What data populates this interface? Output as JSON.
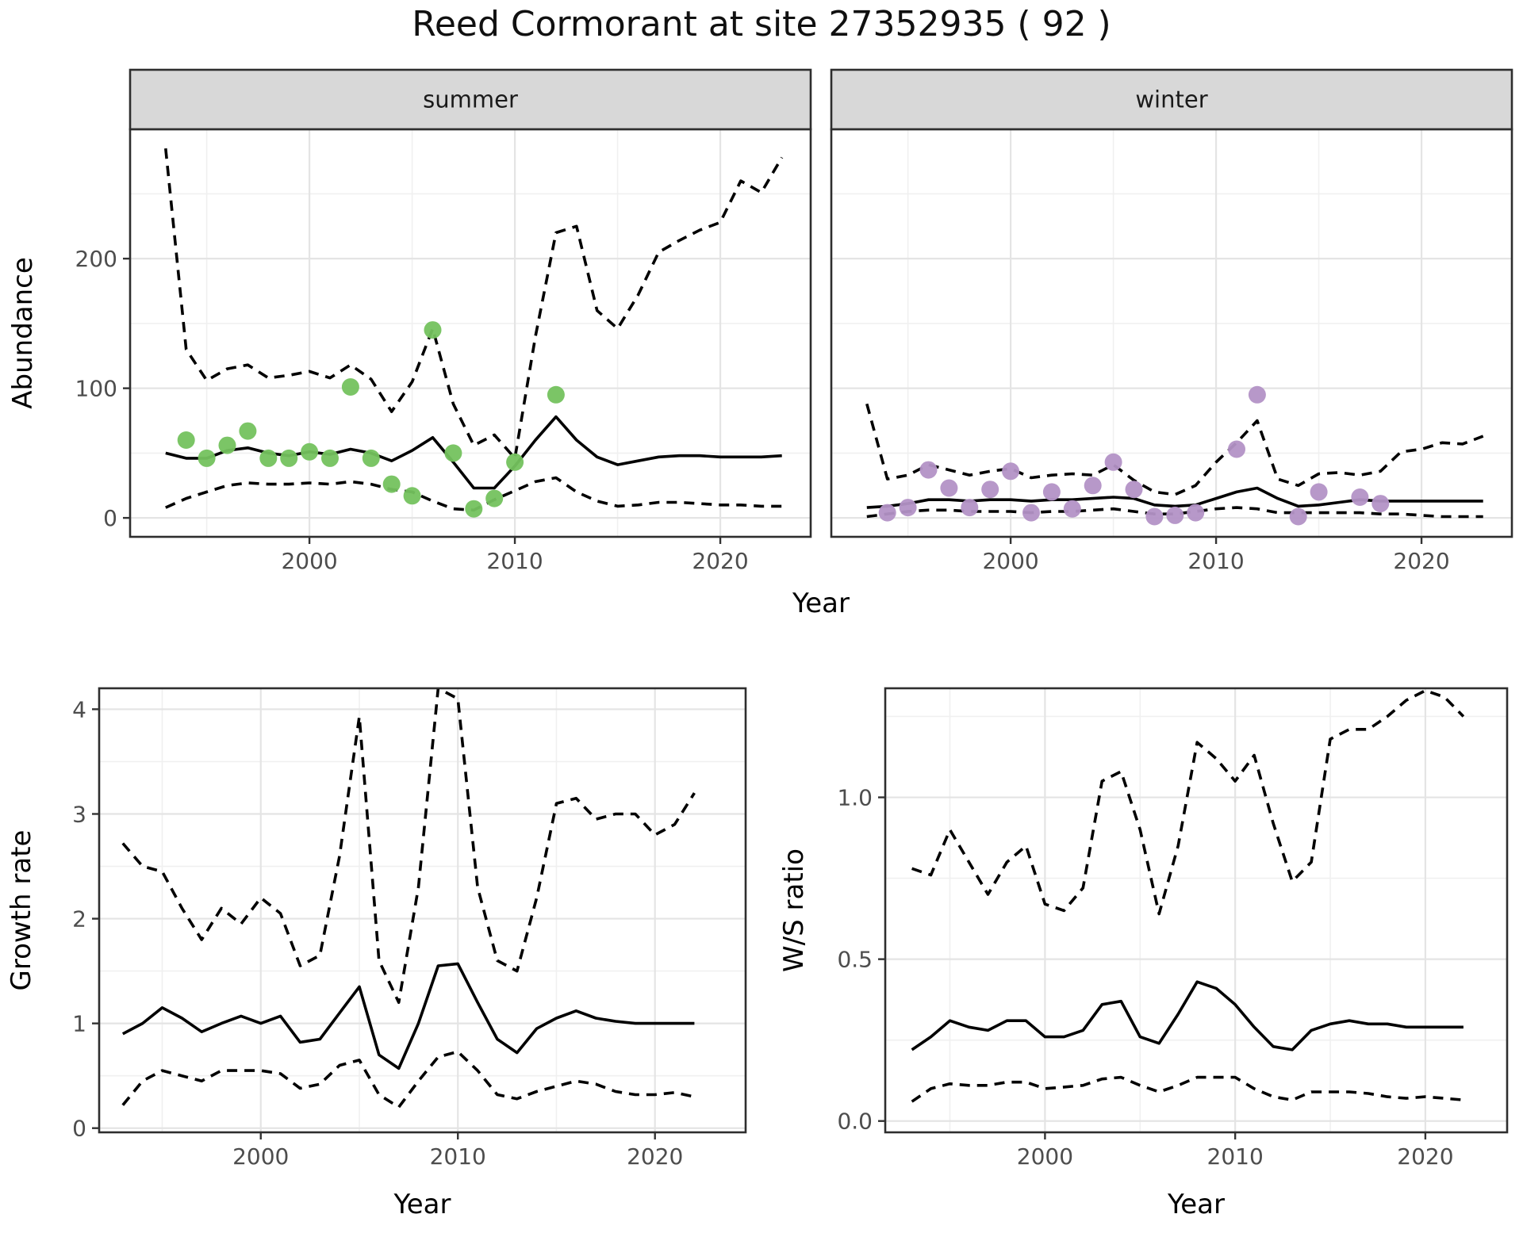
{
  "title": "Reed Cormorant at site 27352935 ( 92 )",
  "shared_x_title": "Year",
  "colors": {
    "summer_points": "#74c25e",
    "winter_points": "#b392c6",
    "line": "#000000",
    "grid_major": "#e4e4e4",
    "grid_minor": "#f0f0f0",
    "strip_fill": "#d8d8d8",
    "panel_border": "#2e2e2e",
    "tick_text": "#4d4d4d",
    "axis_title": "#000000"
  },
  "chart_data": [
    {
      "type": "line",
      "facet": "summer",
      "xlabel": "Year",
      "ylabel": "Abundance",
      "x_ticks": [
        2000,
        2010,
        2020
      ],
      "x_minor": [
        1995,
        2005,
        2015
      ],
      "y_ticks": [
        0,
        100,
        200
      ],
      "y_minor": [
        50,
        150,
        250
      ],
      "xlim": [
        1991.27,
        2024.4
      ],
      "ylim": [
        -14.6,
        299.8
      ],
      "grid": true,
      "legend": "none",
      "years": [
        1993,
        1994,
        1995,
        1996,
        1997,
        1998,
        1999,
        2000,
        2001,
        2002,
        2003,
        2004,
        2005,
        2006,
        2007,
        2008,
        2009,
        2010,
        2011,
        2012,
        2013,
        2014,
        2015,
        2016,
        2017,
        2018,
        2019,
        2020,
        2021,
        2022,
        2023
      ],
      "series": [
        {
          "name": "median",
          "style": "solid",
          "values": [
            50,
            46,
            46,
            52,
            54,
            50,
            48,
            51,
            49,
            53,
            50,
            44,
            52,
            62,
            43,
            23,
            23,
            40,
            60,
            78,
            60,
            47,
            41,
            44,
            47,
            48,
            48,
            47,
            47,
            47,
            48
          ]
        },
        {
          "name": "upper-credible",
          "style": "dashed",
          "values": [
            285,
            130,
            106,
            115,
            118,
            108,
            110,
            113,
            108,
            118,
            107,
            82,
            105,
            146,
            88,
            56,
            64,
            46,
            140,
            220,
            225,
            160,
            146,
            172,
            205,
            214,
            222,
            228,
            260,
            251,
            278
          ]
        },
        {
          "name": "lower-credible",
          "style": "dashed",
          "values": [
            8,
            15,
            20,
            25,
            27,
            26,
            26,
            27,
            26,
            28,
            26,
            22,
            20,
            13,
            7,
            6,
            14,
            21,
            28,
            31,
            20,
            13,
            9,
            10,
            12,
            12,
            11,
            10,
            10,
            9,
            9
          ]
        }
      ],
      "points": {
        "name": "observed-counts-summer",
        "color": "#74c25e",
        "years": [
          1994,
          1995,
          1996,
          1997,
          1998,
          1999,
          2000,
          2001,
          2002,
          2003,
          2004,
          2005,
          2006,
          2007,
          2008,
          2009,
          2010,
          2012
        ],
        "values": [
          60,
          46,
          56,
          67,
          46,
          46,
          51,
          46,
          101,
          46,
          26,
          17,
          145,
          50,
          7,
          15,
          43,
          95
        ]
      }
    },
    {
      "type": "line",
      "facet": "winter",
      "xlabel": "Year",
      "ylabel": "Abundance",
      "x_ticks": [
        2000,
        2010,
        2020
      ],
      "x_minor": [
        1995,
        2005,
        2015
      ],
      "y_ticks": [
        0,
        100,
        200
      ],
      "y_minor": [
        50,
        150,
        250
      ],
      "xlim": [
        1991.27,
        2024.4
      ],
      "ylim": [
        -14.6,
        299.8
      ],
      "grid": true,
      "legend": "none",
      "years": [
        1993,
        1994,
        1995,
        1996,
        1997,
        1998,
        1999,
        2000,
        2001,
        2002,
        2003,
        2004,
        2005,
        2006,
        2007,
        2008,
        2009,
        2010,
        2011,
        2012,
        2013,
        2014,
        2015,
        2016,
        2017,
        2018,
        2019,
        2020,
        2021,
        2022,
        2023
      ],
      "series": [
        {
          "name": "median",
          "style": "solid",
          "values": [
            8,
            9,
            11,
            14,
            14,
            13,
            14,
            14,
            13,
            14,
            14,
            15,
            16,
            15,
            10,
            9,
            10,
            15,
            20,
            23,
            15,
            9,
            10,
            12,
            14,
            13,
            13,
            13,
            13,
            13,
            13
          ]
        },
        {
          "name": "upper-credible",
          "style": "dashed",
          "values": [
            88,
            30,
            33,
            41,
            37,
            33,
            36,
            38,
            31,
            33,
            34,
            33,
            41,
            29,
            20,
            18,
            25,
            43,
            58,
            75,
            30,
            25,
            34,
            35,
            33,
            36,
            51,
            53,
            58,
            57,
            63
          ]
        },
        {
          "name": "lower-credible",
          "style": "dashed",
          "values": [
            1,
            3,
            5,
            6,
            6,
            5,
            5,
            5,
            4,
            5,
            5,
            6,
            7,
            5,
            3,
            3,
            5,
            7,
            8,
            7,
            4,
            4,
            4,
            4,
            4,
            3,
            3,
            2,
            1,
            1,
            1
          ]
        }
      ],
      "points": {
        "name": "observed-counts-winter",
        "color": "#b392c6",
        "years": [
          1994,
          1995,
          1996,
          1997,
          1998,
          1999,
          2000,
          2001,
          2002,
          2003,
          2004,
          2005,
          2006,
          2007,
          2008,
          2009,
          2011,
          2012,
          2014,
          2015,
          2017,
          2018
        ],
        "values": [
          4,
          8,
          37,
          23,
          8,
          22,
          36,
          4,
          20,
          7,
          25,
          43,
          22,
          1,
          2,
          4,
          53,
          95,
          1,
          20,
          16,
          11
        ]
      }
    },
    {
      "type": "line",
      "facet": null,
      "xlabel": "Year",
      "ylabel": "Growth rate",
      "x_ticks": [
        2000,
        2010,
        2020
      ],
      "x_minor": [
        1995,
        2005,
        2015
      ],
      "y_ticks": [
        0,
        1,
        2,
        3,
        4
      ],
      "y_minor": [
        0.5,
        1.5,
        2.5,
        3.5
      ],
      "xlim": [
        1991.8,
        2024.6
      ],
      "ylim": [
        -0.04,
        4.2
      ],
      "grid": true,
      "legend": "none",
      "years": [
        1993,
        1994,
        1995,
        1996,
        1997,
        1998,
        1999,
        2000,
        2001,
        2002,
        2003,
        2004,
        2005,
        2006,
        2007,
        2008,
        2009,
        2010,
        2011,
        2012,
        2013,
        2014,
        2015,
        2016,
        2017,
        2018,
        2019,
        2020,
        2021,
        2022
      ],
      "series": [
        {
          "name": "median",
          "style": "solid",
          "values": [
            0.9,
            1.0,
            1.15,
            1.05,
            0.92,
            1.0,
            1.07,
            1.0,
            1.07,
            0.82,
            0.85,
            1.1,
            1.35,
            0.7,
            0.57,
            1.0,
            1.55,
            1.57,
            1.2,
            0.85,
            0.72,
            0.95,
            1.05,
            1.12,
            1.05,
            1.02,
            1.0,
            1.0,
            1.0,
            1.0
          ]
        },
        {
          "name": "upper-credible",
          "style": "dashed",
          "values": [
            2.72,
            2.5,
            2.45,
            2.1,
            1.8,
            2.1,
            1.95,
            2.2,
            2.05,
            1.55,
            1.65,
            2.6,
            3.93,
            1.6,
            1.2,
            2.3,
            4.2,
            4.1,
            2.3,
            1.6,
            1.5,
            2.2,
            3.1,
            3.15,
            2.95,
            3.0,
            3.0,
            2.8,
            2.9,
            3.2
          ]
        },
        {
          "name": "lower-credible",
          "style": "dashed",
          "values": [
            0.22,
            0.45,
            0.55,
            0.5,
            0.45,
            0.55,
            0.55,
            0.55,
            0.52,
            0.38,
            0.42,
            0.6,
            0.65,
            0.32,
            0.2,
            0.45,
            0.68,
            0.73,
            0.55,
            0.32,
            0.28,
            0.35,
            0.4,
            0.45,
            0.42,
            0.35,
            0.32,
            0.32,
            0.34,
            0.3
          ]
        }
      ],
      "points": null
    },
    {
      "type": "line",
      "facet": null,
      "xlabel": "Year",
      "ylabel": "W/S ratio",
      "x_ticks": [
        2000,
        2010,
        2020
      ],
      "x_minor": [
        1995,
        2005,
        2015
      ],
      "y_ticks": [
        0.0,
        0.5,
        1.0
      ],
      "y_tick_labels": [
        "0.0",
        "0.5",
        "1.0"
      ],
      "y_minor": [
        0.25,
        0.75,
        1.25
      ],
      "xlim": [
        1991.6,
        2024.3
      ],
      "ylim": [
        -0.035,
        1.337
      ],
      "grid": true,
      "legend": "none",
      "years": [
        1993,
        1994,
        1995,
        1996,
        1997,
        1998,
        1999,
        2000,
        2001,
        2002,
        2003,
        2004,
        2005,
        2006,
        2007,
        2008,
        2009,
        2010,
        2011,
        2012,
        2013,
        2014,
        2015,
        2016,
        2017,
        2018,
        2019,
        2020,
        2021,
        2022
      ],
      "series": [
        {
          "name": "median",
          "style": "solid",
          "values": [
            0.22,
            0.26,
            0.31,
            0.29,
            0.28,
            0.31,
            0.31,
            0.26,
            0.26,
            0.28,
            0.36,
            0.37,
            0.26,
            0.24,
            0.33,
            0.43,
            0.41,
            0.36,
            0.29,
            0.23,
            0.22,
            0.28,
            0.3,
            0.31,
            0.3,
            0.3,
            0.29,
            0.29,
            0.29,
            0.29
          ]
        },
        {
          "name": "upper-credible",
          "style": "dashed",
          "values": [
            0.78,
            0.76,
            0.9,
            0.8,
            0.7,
            0.8,
            0.85,
            0.67,
            0.65,
            0.72,
            1.05,
            1.08,
            0.9,
            0.64,
            0.85,
            1.17,
            1.12,
            1.05,
            1.13,
            0.92,
            0.74,
            0.8,
            1.18,
            1.21,
            1.21,
            1.25,
            1.3,
            1.33,
            1.31,
            1.25
          ]
        },
        {
          "name": "lower-credible",
          "style": "dashed",
          "values": [
            0.06,
            0.1,
            0.115,
            0.11,
            0.11,
            0.12,
            0.12,
            0.1,
            0.105,
            0.11,
            0.13,
            0.135,
            0.11,
            0.09,
            0.11,
            0.135,
            0.135,
            0.135,
            0.1,
            0.075,
            0.065,
            0.09,
            0.09,
            0.09,
            0.085,
            0.075,
            0.07,
            0.075,
            0.07,
            0.065
          ]
        }
      ],
      "points": null
    }
  ]
}
